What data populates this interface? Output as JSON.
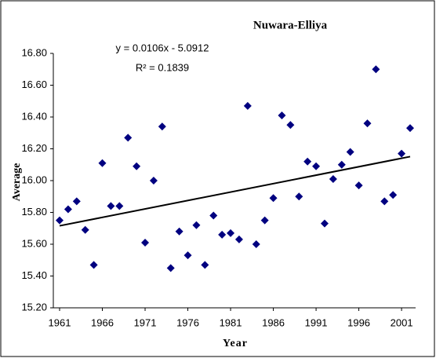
{
  "chart_data": {
    "type": "scatter",
    "title": "Nuwara-Elliya",
    "annotations": [
      "y = 0.0106x - 5.0912",
      "R² = 0.1839"
    ],
    "x_label": "Year",
    "y_label": "Average",
    "x": [
      1961,
      1962,
      1963,
      1964,
      1965,
      1966,
      1967,
      1968,
      1969,
      1970,
      1971,
      1972,
      1973,
      1974,
      1975,
      1976,
      1977,
      1978,
      1979,
      1980,
      1981,
      1982,
      1983,
      1984,
      1985,
      1986,
      1987,
      1988,
      1989,
      1990,
      1991,
      1992,
      1993,
      1994,
      1995,
      1996,
      1997,
      1998,
      1999,
      2000,
      2001,
      2002
    ],
    "values": [
      15.75,
      15.82,
      15.87,
      15.69,
      15.47,
      16.11,
      15.84,
      15.84,
      16.27,
      16.09,
      15.61,
      16.0,
      16.34,
      15.45,
      15.68,
      15.53,
      15.72,
      15.47,
      15.78,
      15.66,
      15.67,
      15.63,
      16.47,
      15.6,
      15.75,
      15.89,
      16.41,
      16.35,
      15.9,
      16.12,
      16.09,
      15.73,
      16.01,
      16.1,
      16.18,
      15.97,
      16.36,
      16.7,
      15.87,
      15.91,
      16.17,
      16.33
    ],
    "color": "#000080",
    "trendline_color": "#000000",
    "xlim": [
      1961,
      2002
    ],
    "xticks": [
      1961,
      1966,
      1971,
      1976,
      1981,
      1986,
      1991,
      1996,
      2001
    ],
    "ylim": [
      15.2,
      16.8
    ],
    "yticks": [
      {
        "value": 15.2,
        "label": "15.20"
      },
      {
        "value": 15.4,
        "label": "15.40"
      },
      {
        "value": 15.6,
        "label": "15.60"
      },
      {
        "value": 15.8,
        "label": "15.80"
      },
      {
        "value": 16,
        "label": "16.00"
      },
      {
        "value": 16.2,
        "label": "16.20"
      },
      {
        "value": 16.4,
        "label": "16.40"
      },
      {
        "value": 16.6,
        "label": "16.60"
      },
      {
        "value": 16.8,
        "label": "16.80"
      }
    ],
    "grid": false
  }
}
